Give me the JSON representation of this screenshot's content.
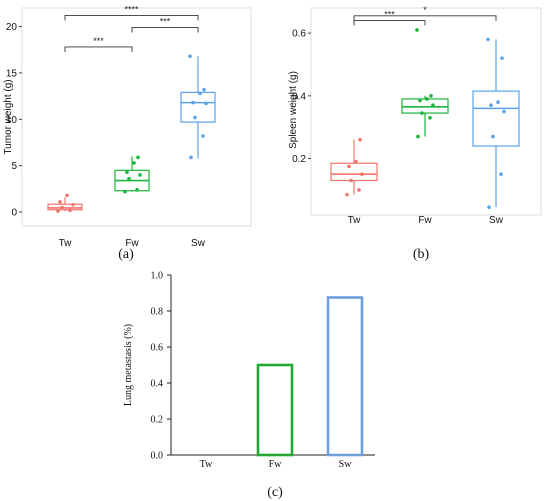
{
  "colors": {
    "Tw": "#f2746b",
    "Fw": "#1db33d",
    "Sw": "#5aa1ec",
    "bar_Fw": "#22a832",
    "bar_Sw": "#6e9fe0"
  },
  "chart_data": [
    {
      "panel": "(a)",
      "type": "box",
      "ylabel": "Tumor weight (g)",
      "categories": [
        "Tw",
        "Fw",
        "Sw"
      ],
      "ylim": [
        -1.5,
        22
      ],
      "yticks": [
        "0",
        "5",
        "10",
        "15",
        "20"
      ],
      "boxes": [
        {
          "q1": 0.25,
          "median": 0.45,
          "q3": 0.85,
          "whisker_low": 0.1,
          "whisker_high": 1.6,
          "points": [
            0.1,
            0.2,
            0.5,
            0.8,
            1.1,
            1.8
          ]
        },
        {
          "q1": 2.3,
          "median": 3.4,
          "q3": 4.5,
          "whisker_low": 2.2,
          "whisker_high": 6.0,
          "points": [
            2.2,
            2.4,
            3.6,
            4.0,
            4.3,
            5.3,
            5.9
          ]
        },
        {
          "q1": 9.7,
          "median": 11.8,
          "q3": 12.9,
          "whisker_low": 5.8,
          "whisker_high": 16.8,
          "points": [
            5.9,
            8.2,
            10.2,
            11.7,
            11.8,
            12.8,
            13.2,
            16.8
          ]
        }
      ],
      "brackets": [
        {
          "from": "Tw",
          "to": "Sw",
          "y": 21.2,
          "label": "****"
        },
        {
          "from": "Tw",
          "to": "Fw",
          "y": 17.8,
          "label": "***"
        },
        {
          "from": "Fw",
          "to": "Sw",
          "y": 19.9,
          "label": "***"
        }
      ]
    },
    {
      "panel": "(b)",
      "type": "box",
      "ylabel": "Spleen weight (g)",
      "categories": [
        "Tw",
        "Fw",
        "Sw"
      ],
      "ylim": [
        0.02,
        0.68
      ],
      "yticks": [
        "0.2",
        "0.4",
        "0.6"
      ],
      "boxes": [
        {
          "q1": 0.13,
          "median": 0.15,
          "q3": 0.185,
          "whisker_low": 0.085,
          "whisker_high": 0.26,
          "points": [
            0.085,
            0.1,
            0.13,
            0.15,
            0.175,
            0.19,
            0.26
          ]
        },
        {
          "q1": 0.345,
          "median": 0.365,
          "q3": 0.39,
          "whisker_low": 0.27,
          "whisker_high": 0.4,
          "points": [
            0.27,
            0.33,
            0.345,
            0.37,
            0.385,
            0.39,
            0.4,
            0.61
          ]
        },
        {
          "q1": 0.24,
          "median": 0.36,
          "q3": 0.415,
          "whisker_low": 0.045,
          "whisker_high": 0.58,
          "points": [
            0.045,
            0.15,
            0.27,
            0.35,
            0.37,
            0.38,
            0.52,
            0.58
          ]
        }
      ],
      "brackets": [
        {
          "from": "Tw",
          "to": "Sw",
          "y": 0.655,
          "label": "*"
        },
        {
          "from": "Tw",
          "to": "Fw",
          "y": 0.64,
          "label": "***"
        }
      ]
    },
    {
      "panel": "(c)",
      "type": "bar",
      "ylabel": "Lung metastasis (%)",
      "categories": [
        "Tw",
        "Fw",
        "Sw"
      ],
      "values": [
        0.0,
        0.5,
        0.875
      ],
      "ylim": [
        0,
        1.0
      ],
      "yticks": [
        "0.0",
        "0.2",
        "0.4",
        "0.6",
        "0.8",
        "1.0"
      ]
    }
  ]
}
